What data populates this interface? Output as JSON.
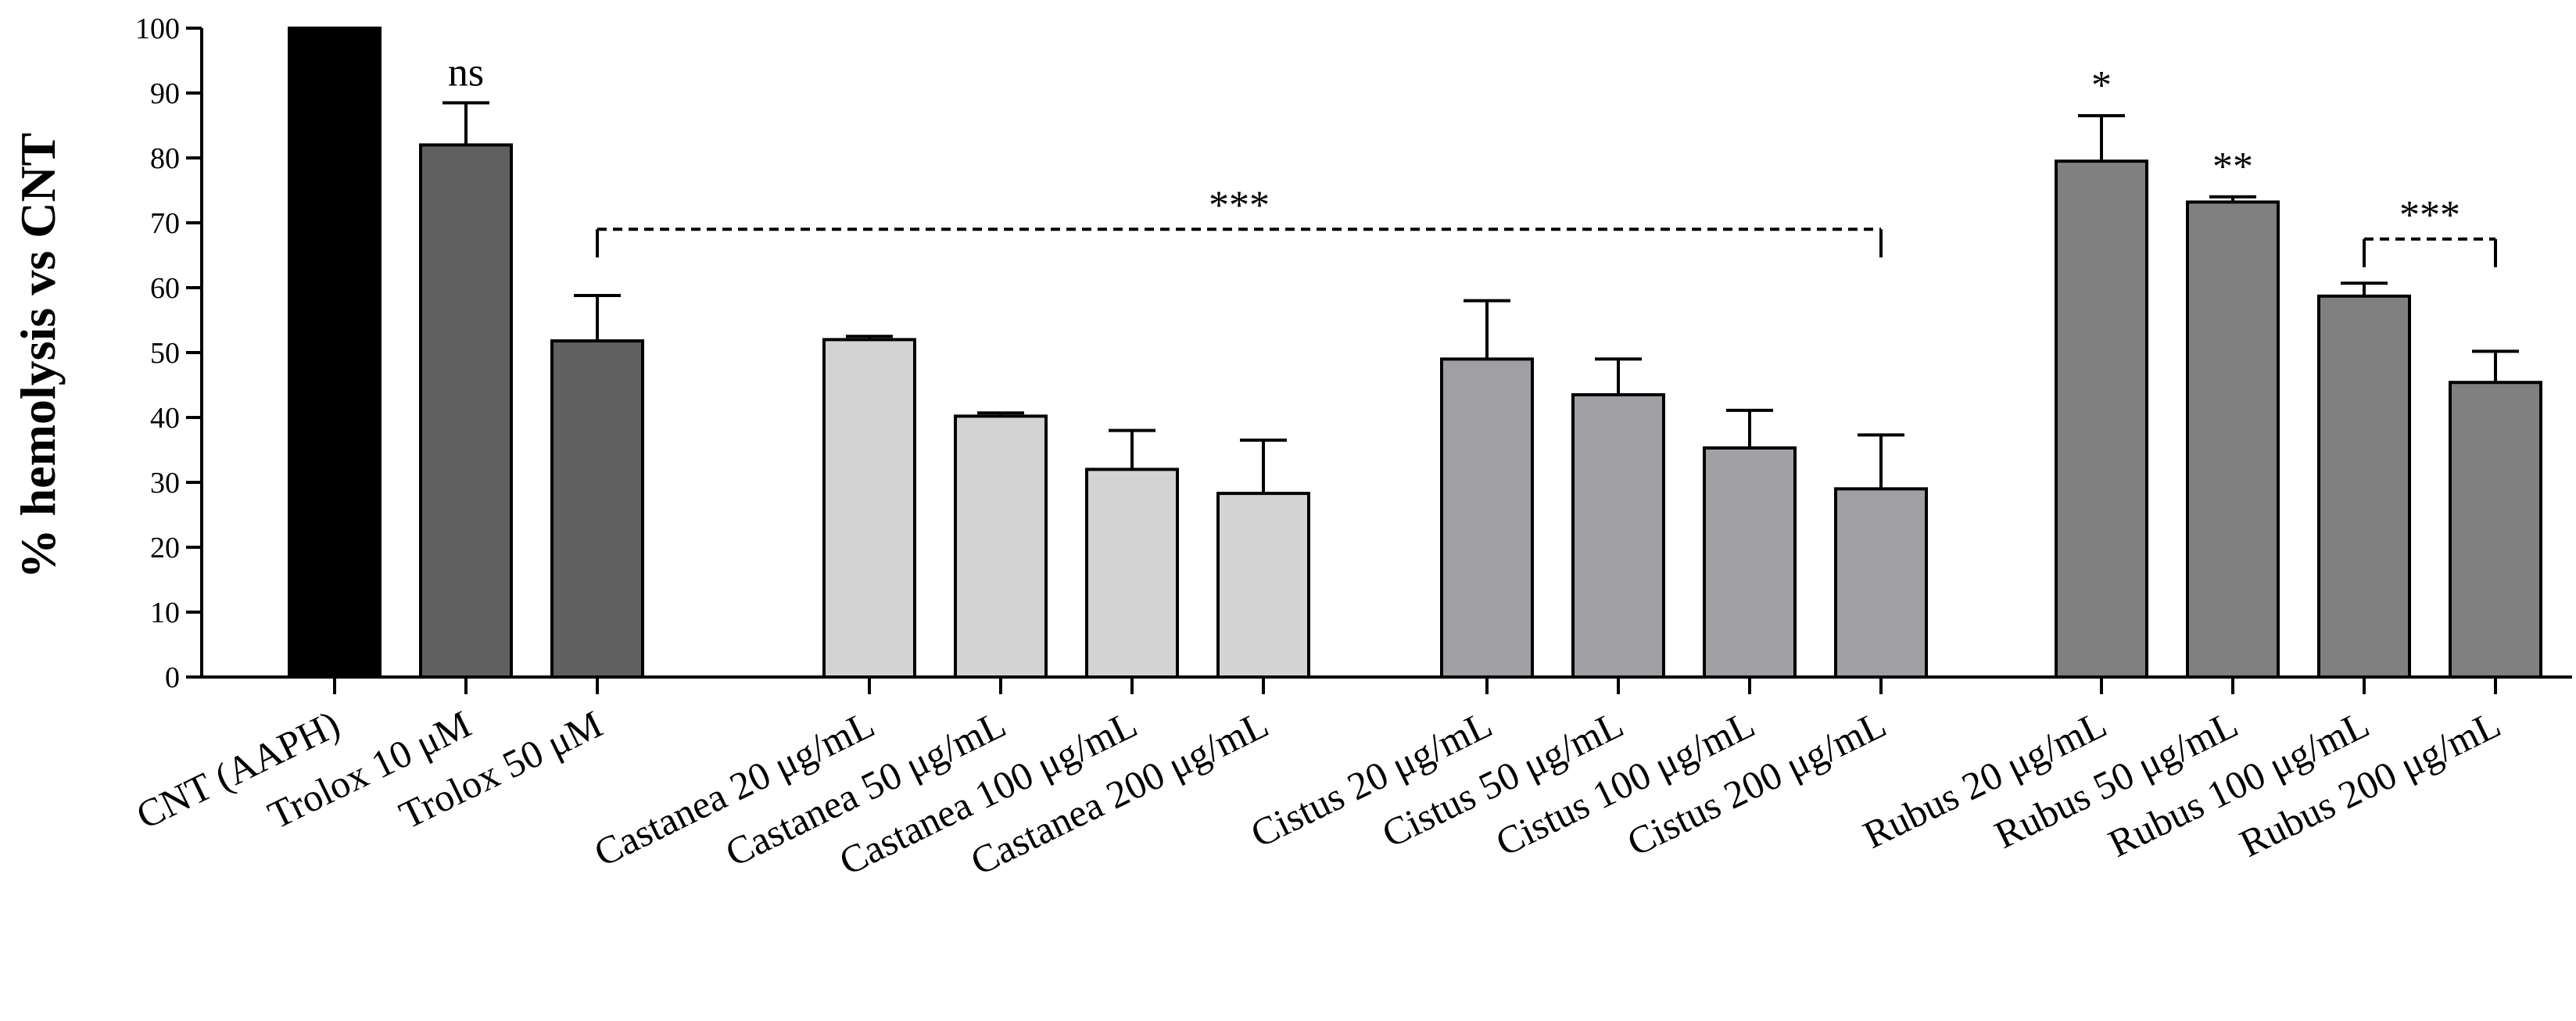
{
  "chart_data": {
    "type": "bar",
    "title": "",
    "xlabel": "",
    "ylabel": "% hemolysis vs CNT",
    "ylim": [
      0,
      100
    ],
    "yticks": [
      0,
      10,
      20,
      30,
      40,
      50,
      60,
      70,
      80,
      90,
      100
    ],
    "grid": false,
    "legend": "none",
    "bars": [
      {
        "label": "CNT (AAPH)",
        "value": 100,
        "error": 0,
        "color": "#000000",
        "group": 0
      },
      {
        "label": "Trolox 10 μM",
        "value": 82,
        "error": 6.5,
        "color": "#606060",
        "group": 0
      },
      {
        "label": "Trolox 50 μM",
        "value": 51.8,
        "error": 7,
        "color": "#606060",
        "group": 0
      },
      {
        "label": "Castanea 20 μg/mL",
        "value": 52,
        "error": 0.5,
        "color": "#d3d3d3",
        "group": 1
      },
      {
        "label": "Castanea 50 μg/mL",
        "value": 40.2,
        "error": 0.5,
        "color": "#d3d3d3",
        "group": 1
      },
      {
        "label": "Castanea 100 μg/mL",
        "value": 32,
        "error": 6,
        "color": "#d3d3d3",
        "group": 1
      },
      {
        "label": "Castanea 200 μg/mL",
        "value": 28.3,
        "error": 8.2,
        "color": "#d3d3d3",
        "group": 1
      },
      {
        "label": "Cistus 20 μg/mL",
        "value": 49,
        "error": 9,
        "color": "#a0a0a4",
        "group": 2
      },
      {
        "label": "Cistus 50 μg/mL",
        "value": 43.5,
        "error": 5.5,
        "color": "#a0a0a4",
        "group": 2
      },
      {
        "label": "Cistus 100 μg/mL",
        "value": 35.3,
        "error": 5.8,
        "color": "#a0a0a4",
        "group": 2
      },
      {
        "label": "Cistus 200 μg/mL",
        "value": 29,
        "error": 8.3,
        "color": "#a0a0a4",
        "group": 2
      },
      {
        "label": "Rubus 20 μg/mL",
        "value": 79.5,
        "error": 7,
        "color": "#808080",
        "group": 3
      },
      {
        "label": "Rubus 50 μg/mL",
        "value": 73.2,
        "error": 0.8,
        "color": "#808080",
        "group": 3
      },
      {
        "label": "Rubus 100 μg/mL",
        "value": 58.7,
        "error": 2,
        "color": "#808080",
        "group": 3
      },
      {
        "label": "Rubus 200 μg/mL",
        "value": 45.4,
        "error": 4.8,
        "color": "#808080",
        "group": 3
      }
    ],
    "annotations": [
      {
        "type": "label",
        "text": "ns",
        "bar": 1
      },
      {
        "type": "label",
        "text": "*",
        "bar": 11
      },
      {
        "type": "label",
        "text": "**",
        "bar": 12
      },
      {
        "type": "bracket",
        "text": "***",
        "from_bar": 2,
        "to_bar": 10,
        "y": 69
      },
      {
        "type": "bracket",
        "text": "***",
        "from_bar": 13,
        "to_bar": 14,
        "y": 67.5
      }
    ]
  }
}
